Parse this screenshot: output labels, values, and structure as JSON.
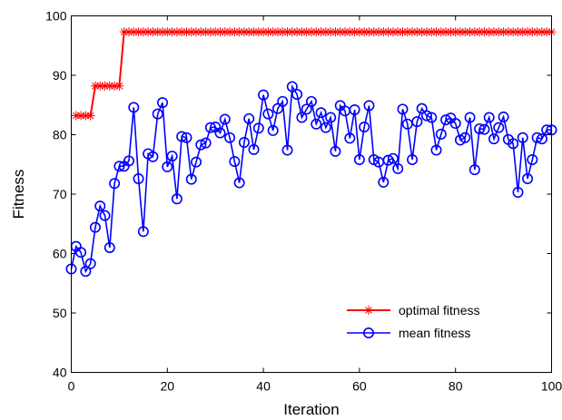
{
  "chart_data": {
    "type": "line",
    "xlabel": "Iteration",
    "ylabel": "Fitness",
    "xlim": [
      0,
      100
    ],
    "ylim": [
      40,
      100
    ],
    "xticks": [
      0,
      20,
      40,
      60,
      80,
      100
    ],
    "yticks": [
      40,
      50,
      60,
      70,
      80,
      90,
      100
    ],
    "grid": false,
    "legend_position": "bottom-right",
    "series": [
      {
        "name": "optimal fitness",
        "color": "#ff0000",
        "marker": "star",
        "x": [
          1,
          2,
          3,
          4,
          5,
          6,
          7,
          8,
          9,
          10,
          11,
          12,
          13,
          14,
          15,
          16,
          17,
          18,
          19,
          20,
          21,
          22,
          23,
          24,
          25,
          26,
          27,
          28,
          29,
          30,
          31,
          32,
          33,
          34,
          35,
          36,
          37,
          38,
          39,
          40,
          41,
          42,
          43,
          44,
          45,
          46,
          47,
          48,
          49,
          50,
          51,
          52,
          53,
          54,
          55,
          56,
          57,
          58,
          59,
          60,
          61,
          62,
          63,
          64,
          65,
          66,
          67,
          68,
          69,
          70,
          71,
          72,
          73,
          74,
          75,
          76,
          77,
          78,
          79,
          80,
          81,
          82,
          83,
          84,
          85,
          86,
          87,
          88,
          89,
          90,
          91,
          92,
          93,
          94,
          95,
          96,
          97,
          98,
          99,
          100
        ],
        "values": [
          83.2,
          83.2,
          83.2,
          83.2,
          88.2,
          88.2,
          88.2,
          88.2,
          88.2,
          88.2,
          97.3,
          97.3,
          97.3,
          97.3,
          97.3,
          97.3,
          97.3,
          97.3,
          97.3,
          97.3,
          97.3,
          97.3,
          97.3,
          97.3,
          97.3,
          97.3,
          97.3,
          97.3,
          97.3,
          97.3,
          97.3,
          97.3,
          97.3,
          97.3,
          97.3,
          97.3,
          97.3,
          97.3,
          97.3,
          97.3,
          97.3,
          97.3,
          97.3,
          97.3,
          97.3,
          97.3,
          97.3,
          97.3,
          97.3,
          97.3,
          97.3,
          97.3,
          97.3,
          97.3,
          97.3,
          97.3,
          97.3,
          97.3,
          97.3,
          97.3,
          97.3,
          97.3,
          97.3,
          97.3,
          97.3,
          97.3,
          97.3,
          97.3,
          97.3,
          97.3,
          97.3,
          97.3,
          97.3,
          97.3,
          97.3,
          97.3,
          97.3,
          97.3,
          97.3,
          97.3,
          97.3,
          97.3,
          97.3,
          97.3,
          97.3,
          97.3,
          97.3,
          97.3,
          97.3,
          97.3,
          97.3,
          97.3,
          97.3,
          97.3,
          97.3,
          97.3,
          97.3,
          97.3,
          97.3,
          97.3
        ]
      },
      {
        "name": "mean fitness",
        "color": "#0000ff",
        "marker": "circle",
        "x": [
          0,
          1,
          2,
          3,
          4,
          5,
          6,
          7,
          8,
          9,
          10,
          11,
          12,
          13,
          14,
          15,
          16,
          17,
          18,
          19,
          20,
          21,
          22,
          23,
          24,
          25,
          26,
          27,
          28,
          29,
          30,
          31,
          32,
          33,
          34,
          35,
          36,
          37,
          38,
          39,
          40,
          41,
          42,
          43,
          44,
          45,
          46,
          47,
          48,
          49,
          50,
          51,
          52,
          53,
          54,
          55,
          56,
          57,
          58,
          59,
          60,
          61,
          62,
          63,
          64,
          65,
          66,
          67,
          68,
          69,
          70,
          71,
          72,
          73,
          74,
          75,
          76,
          77,
          78,
          79,
          80,
          81,
          82,
          83,
          84,
          85,
          86,
          87,
          88,
          89,
          90,
          91,
          92,
          93,
          94,
          95,
          96,
          97,
          98,
          99,
          100
        ],
        "values": [
          57.4,
          61.2,
          60.2,
          57.0,
          58.3,
          64.4,
          68.0,
          66.4,
          61.0,
          71.8,
          74.7,
          74.7,
          75.6,
          84.6,
          72.6,
          63.7,
          76.8,
          76.3,
          83.5,
          85.4,
          74.6,
          76.4,
          69.2,
          79.7,
          79.5,
          72.5,
          75.4,
          78.3,
          78.6,
          81.2,
          81.3,
          80.3,
          82.6,
          79.5,
          75.5,
          71.9,
          78.7,
          82.7,
          77.5,
          81.1,
          86.7,
          83.5,
          80.7,
          84.4,
          85.6,
          77.4,
          88.1,
          86.8,
          82.9,
          84.3,
          85.6,
          81.8,
          83.7,
          81.2,
          82.9,
          77.2,
          84.9,
          84.0,
          79.4,
          84.2,
          75.8,
          81.3,
          84.9,
          75.8,
          75.4,
          72.0,
          75.7,
          76.0,
          74.3,
          84.3,
          81.8,
          75.8,
          82.2,
          84.4,
          83.2,
          82.9,
          77.4,
          80.1,
          82.5,
          82.8,
          81.9,
          79.1,
          79.5,
          82.9,
          74.1,
          81.0,
          80.9,
          82.9,
          79.3,
          81.2,
          83.0,
          79.2,
          78.5,
          70.3,
          79.5,
          72.6,
          75.8,
          79.5,
          79.3,
          80.8,
          80.8
        ]
      }
    ]
  }
}
